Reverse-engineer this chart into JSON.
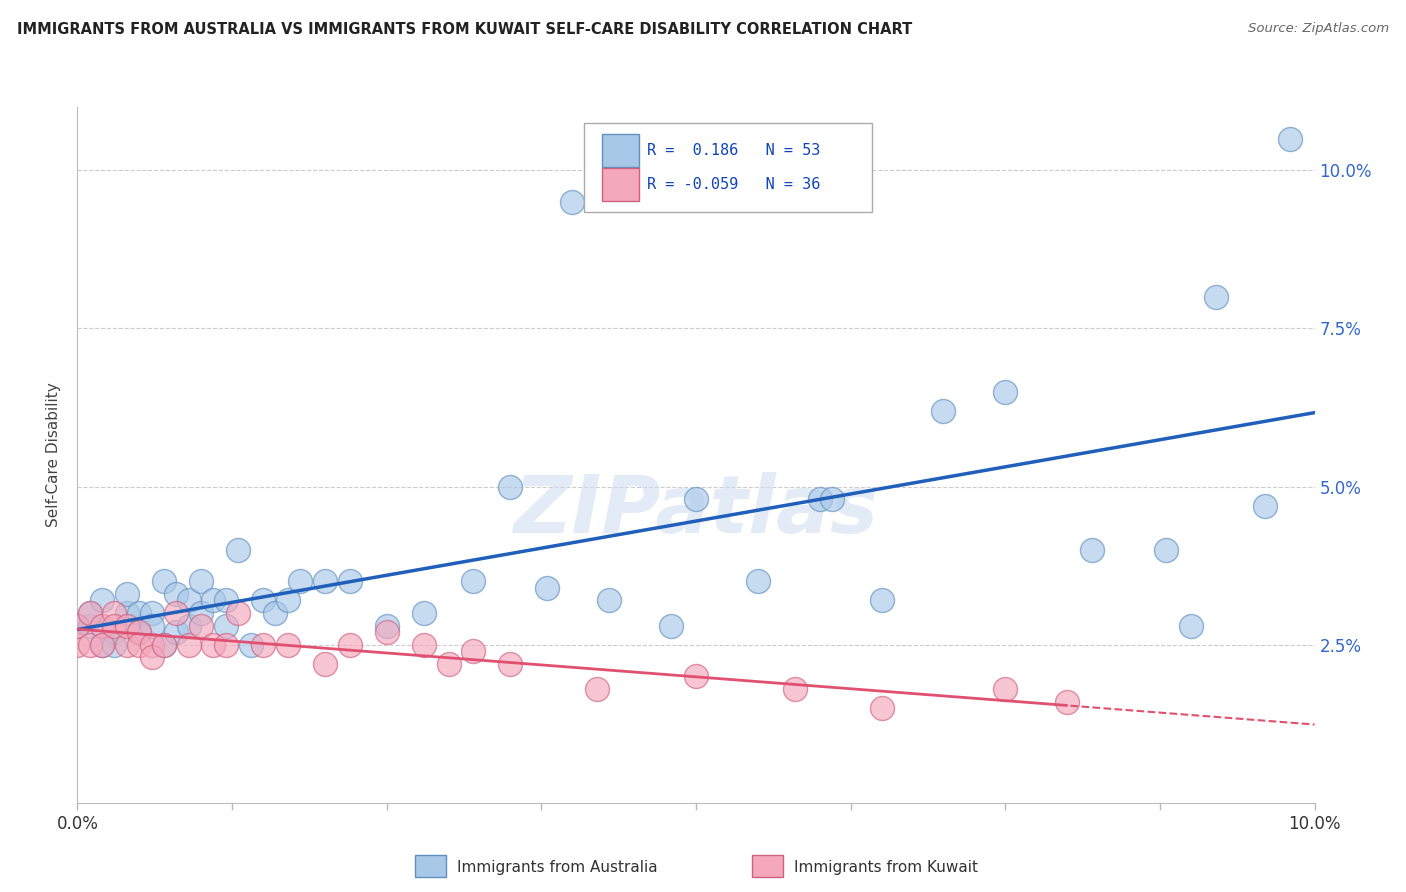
{
  "title": "IMMIGRANTS FROM AUSTRALIA VS IMMIGRANTS FROM KUWAIT SELF-CARE DISABILITY CORRELATION CHART",
  "source": "Source: ZipAtlas.com",
  "ylabel": "Self-Care Disability",
  "australia_R": 0.186,
  "australia_N": 53,
  "kuwait_R": -0.059,
  "kuwait_N": 36,
  "australia_color": "#a8c8e8",
  "kuwait_color": "#f4a8bb",
  "australia_edge_color": "#6090c0",
  "kuwait_edge_color": "#d06080",
  "australia_line_color": "#2060bb",
  "kuwait_line_color": "#e05070",
  "background_color": "#ffffff",
  "grid_color": "#cccccc",
  "australia_x": [
    0.0,
    0.001,
    0.001,
    0.002,
    0.002,
    0.003,
    0.003,
    0.004,
    0.004,
    0.005,
    0.005,
    0.006,
    0.006,
    0.007,
    0.007,
    0.008,
    0.008,
    0.009,
    0.009,
    0.01,
    0.01,
    0.011,
    0.012,
    0.012,
    0.013,
    0.014,
    0.015,
    0.016,
    0.017,
    0.018,
    0.02,
    0.022,
    0.025,
    0.028,
    0.032,
    0.035,
    0.038,
    0.04,
    0.043,
    0.048,
    0.05,
    0.055,
    0.06,
    0.061,
    0.065,
    0.07,
    0.075,
    0.082,
    0.088,
    0.09,
    0.092,
    0.096,
    0.098
  ],
  "australia_y": [
    0.028,
    0.028,
    0.03,
    0.025,
    0.032,
    0.027,
    0.025,
    0.03,
    0.033,
    0.027,
    0.03,
    0.03,
    0.028,
    0.035,
    0.025,
    0.033,
    0.027,
    0.032,
    0.028,
    0.035,
    0.03,
    0.032,
    0.028,
    0.032,
    0.04,
    0.025,
    0.032,
    0.03,
    0.032,
    0.035,
    0.035,
    0.035,
    0.028,
    0.03,
    0.035,
    0.05,
    0.034,
    0.095,
    0.032,
    0.028,
    0.048,
    0.035,
    0.048,
    0.048,
    0.032,
    0.062,
    0.065,
    0.04,
    0.04,
    0.028,
    0.08,
    0.047,
    0.105
  ],
  "kuwait_x": [
    0.0,
    0.0,
    0.001,
    0.001,
    0.002,
    0.002,
    0.003,
    0.003,
    0.004,
    0.004,
    0.005,
    0.005,
    0.006,
    0.006,
    0.007,
    0.008,
    0.009,
    0.01,
    0.011,
    0.012,
    0.013,
    0.015,
    0.017,
    0.02,
    0.022,
    0.025,
    0.028,
    0.03,
    0.032,
    0.035,
    0.042,
    0.05,
    0.058,
    0.065,
    0.075,
    0.08
  ],
  "kuwait_y": [
    0.025,
    0.028,
    0.025,
    0.03,
    0.028,
    0.025,
    0.03,
    0.028,
    0.025,
    0.028,
    0.027,
    0.025,
    0.025,
    0.023,
    0.025,
    0.03,
    0.025,
    0.028,
    0.025,
    0.025,
    0.03,
    0.025,
    0.025,
    0.022,
    0.025,
    0.027,
    0.025,
    0.022,
    0.024,
    0.022,
    0.018,
    0.02,
    0.018,
    0.015,
    0.018,
    0.016
  ],
  "xmin": 0.0,
  "xmax": 0.1,
  "ymin": 0.0,
  "ymax": 0.11,
  "yticks": [
    0.0,
    0.025,
    0.05,
    0.075,
    0.1
  ],
  "ytick_labels": [
    "",
    "2.5%",
    "5.0%",
    "7.5%",
    "10.0%"
  ],
  "xticks": [
    0.0,
    0.0125,
    0.025,
    0.0375,
    0.05,
    0.0625,
    0.075,
    0.0875,
    0.1
  ],
  "xtick_labels": [
    "0.0%",
    "",
    "",
    "",
    "",
    "",
    "",
    "",
    "10.0%"
  ]
}
